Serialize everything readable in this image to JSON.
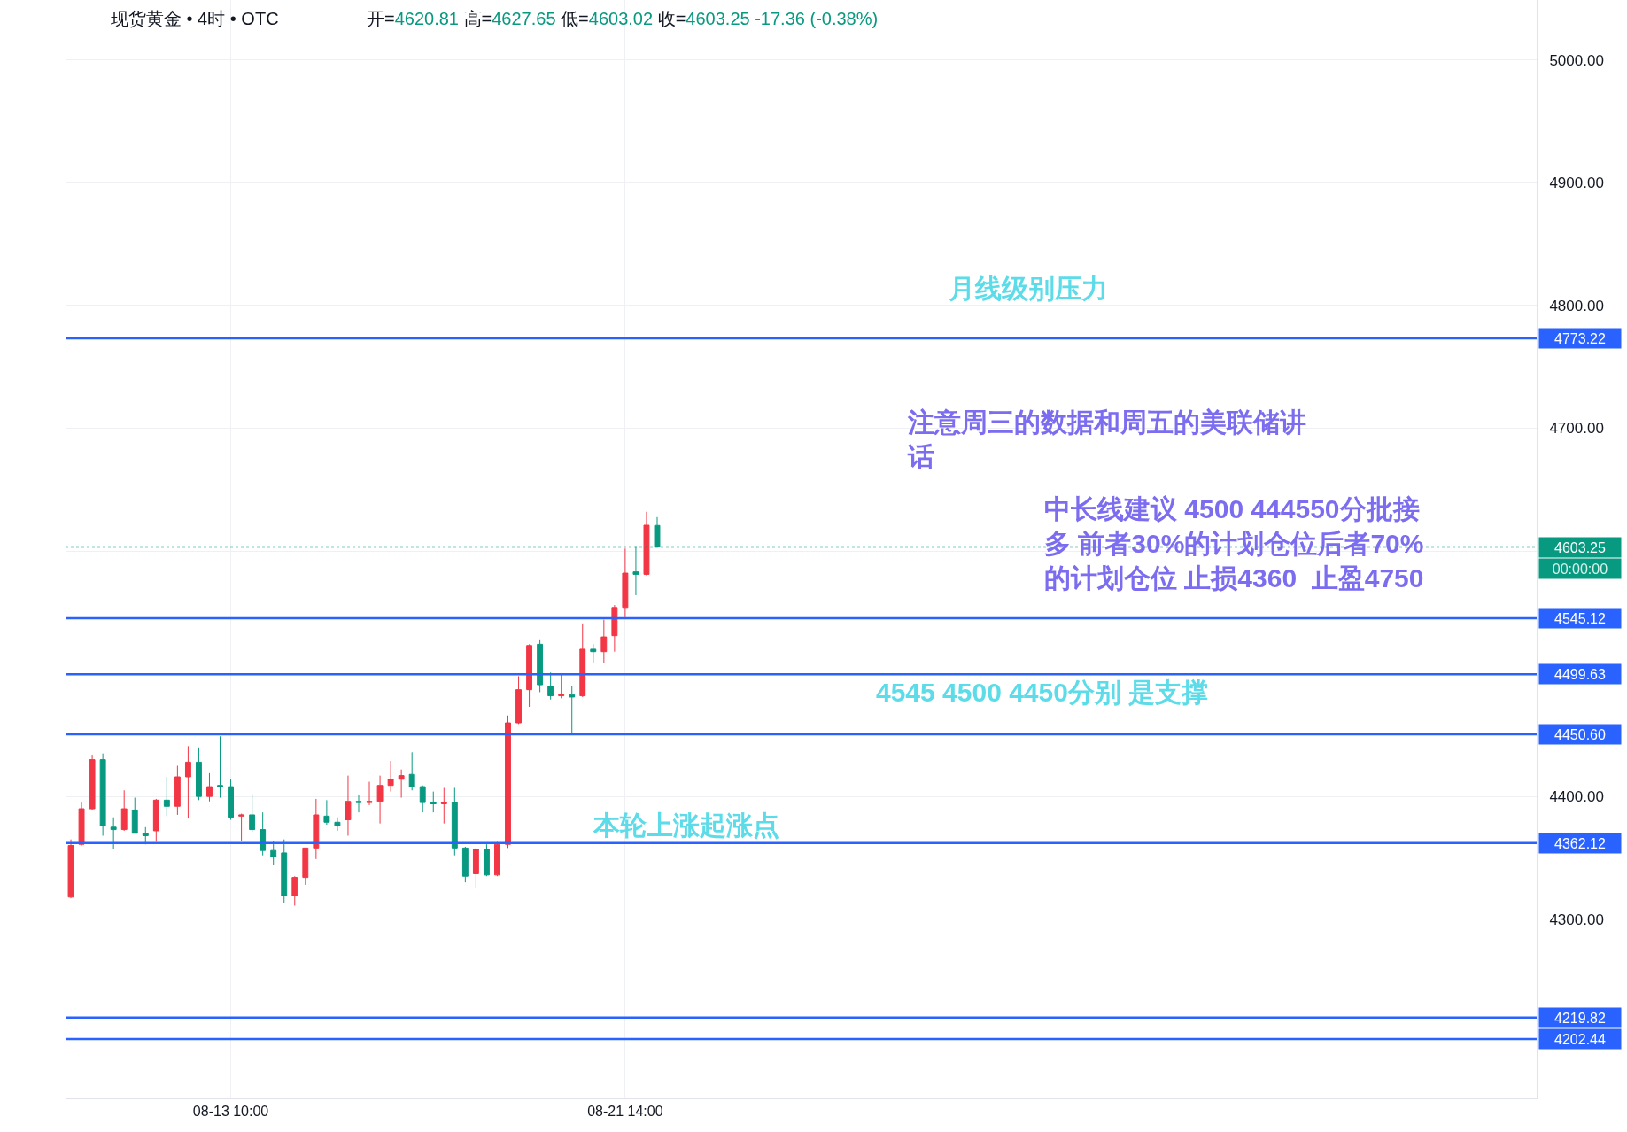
{
  "chart_data": {
    "type": "candlestick",
    "title": "现货黄金 • 4时 • OTC",
    "subtitle": "开=4620.81 高=4627.65 低=4603.02 收=4603.25 -17.36 (-0.38%)",
    "categories": [
      null,
      null,
      null,
      null,
      null,
      null,
      null,
      null,
      null,
      null,
      null,
      null,
      null,
      null,
      null,
      "08-13 10:00",
      null,
      null,
      null,
      null,
      null,
      null,
      null,
      null,
      null,
      null,
      null,
      null,
      null,
      null,
      null,
      null,
      null,
      null,
      null,
      null,
      null,
      null,
      null,
      null,
      null,
      null,
      null,
      null,
      null,
      null,
      null,
      null,
      null,
      null,
      null,
      null,
      "08-21 14:00",
      null,
      null,
      null,
      null,
      null,
      null,
      null,
      null,
      null,
      null,
      null,
      null,
      null,
      null,
      null,
      null,
      null,
      null,
      null,
      null,
      null,
      null,
      null,
      null,
      null,
      null,
      null,
      null,
      null,
      null,
      null,
      null,
      null,
      null,
      null,
      null,
      null,
      null,
      null,
      null,
      null,
      null,
      null,
      null,
      null,
      null,
      null,
      null,
      null,
      null,
      null,
      null,
      null,
      null,
      null,
      null,
      null,
      null,
      null,
      null,
      null,
      null,
      null,
      null,
      null,
      null,
      null,
      null,
      null,
      null,
      null,
      null,
      null,
      null,
      null,
      null,
      null,
      null,
      null,
      null,
      null,
      null,
      null,
      null,
      null
    ],
    "ohlc": [
      [
        4318,
        4365,
        4317,
        4360
      ],
      [
        4361,
        4395,
        4360,
        4390
      ],
      [
        4390,
        4434,
        4389,
        4430
      ],
      [
        4430,
        4435,
        4368,
        4376
      ],
      [
        4375,
        4383,
        4357,
        4373
      ],
      [
        4373,
        4405,
        4372,
        4390
      ],
      [
        4389,
        4399,
        4370,
        4370
      ],
      [
        4370,
        4375,
        4361,
        4368
      ],
      [
        4372,
        4398,
        4363,
        4397
      ],
      [
        4397,
        4416,
        4384,
        4392
      ],
      [
        4392,
        4425,
        4385,
        4416
      ],
      [
        4416,
        4441,
        4382,
        4428
      ],
      [
        4428,
        4440,
        4397,
        4400
      ],
      [
        4400,
        4419,
        4396,
        4408
      ],
      [
        4409,
        4449,
        4399,
        4408
      ],
      [
        4408,
        4414,
        4381,
        4383
      ],
      [
        4384,
        4386,
        4364,
        4385
      ],
      [
        4385,
        4402,
        4371,
        4373
      ],
      [
        4373,
        4387,
        4352,
        4356
      ],
      [
        4356,
        4364,
        4344,
        4351
      ],
      [
        4354,
        4365,
        4313,
        4319
      ],
      [
        4319,
        4335,
        4311,
        4334
      ],
      [
        4334,
        4358,
        4328,
        4358
      ],
      [
        4358,
        4398,
        4349,
        4385
      ],
      [
        4384,
        4397,
        4377,
        4379
      ],
      [
        4379,
        4383,
        4372,
        4376
      ],
      [
        4381,
        4417,
        4368,
        4396
      ],
      [
        4396,
        4401,
        4387,
        4395
      ],
      [
        4395,
        4412,
        4393,
        4396
      ],
      [
        4396,
        4417,
        4378,
        4409
      ],
      [
        4409,
        4429,
        4404,
        4414
      ],
      [
        4414,
        4422,
        4399,
        4417
      ],
      [
        4418,
        4436,
        4405,
        4408
      ],
      [
        4408,
        4409,
        4387,
        4395
      ],
      [
        4395,
        4404,
        4387,
        4394
      ],
      [
        4394,
        4407,
        4378,
        4395
      ],
      [
        4395,
        4407,
        4352,
        4358
      ],
      [
        4358,
        4359,
        4330,
        4335
      ],
      [
        4337,
        4358,
        4325,
        4357
      ],
      [
        4357,
        4361,
        4335,
        4336
      ],
      [
        4336,
        4363,
        4335,
        4361
      ],
      [
        4361,
        4466,
        4358,
        4460
      ],
      [
        4460,
        4498,
        4459,
        4487
      ],
      [
        4487,
        4524,
        4473,
        4523
      ],
      [
        4524,
        4528,
        4485,
        4491
      ],
      [
        4490,
        4501,
        4479,
        4482
      ],
      [
        4482,
        4499,
        4480,
        4483
      ],
      [
        4483,
        4490,
        4452,
        4481
      ],
      [
        4482,
        4541,
        4481,
        4520
      ],
      [
        4520,
        4524,
        4509,
        4518
      ],
      [
        4518,
        4544,
        4509,
        4530
      ],
      [
        4531,
        4556,
        4518,
        4554
      ],
      [
        4554,
        4602,
        4546,
        4582
      ],
      [
        4583,
        4604,
        4564,
        4581
      ],
      [
        4581,
        4632,
        4580,
        4621
      ],
      [
        4620.81,
        4627.65,
        4603.02,
        4603.25
      ],
      null,
      null,
      null,
      null,
      null,
      null,
      null,
      null,
      null,
      null,
      null,
      null,
      null,
      null,
      null,
      null,
      null,
      null,
      null,
      null,
      null,
      null,
      null,
      null,
      null,
      null,
      null,
      null,
      null,
      null,
      null,
      null,
      null,
      null,
      null,
      null,
      null,
      null,
      null,
      null,
      null,
      null,
      null,
      null,
      null,
      null,
      null,
      null,
      null,
      null,
      null,
      null,
      null,
      null,
      null,
      null,
      null,
      null,
      null,
      null,
      null,
      null,
      null,
      null,
      null,
      null,
      null,
      null,
      null,
      null,
      null,
      null,
      null,
      null,
      null,
      null,
      null,
      null,
      null,
      null,
      null,
      null
    ],
    "colors": [
      "#f23645",
      "#f23645",
      "#f23645",
      "#089981",
      "#089981",
      "#f23645",
      "#089981",
      "#089981",
      "#f23645",
      "#089981",
      "#f23645",
      "#f23645",
      "#089981",
      "#f23645",
      "#089981",
      "#089981",
      "#f23645",
      "#089981",
      "#089981",
      "#089981",
      "#089981",
      "#f23645",
      "#f23645",
      "#f23645",
      "#089981",
      "#089981",
      "#f23645",
      "#089981",
      "#f23645",
      "#f23645",
      "#f23645",
      "#f23645",
      "#089981",
      "#089981",
      "#089981",
      "#f23645",
      "#089981",
      "#089981",
      "#f23645",
      "#089981",
      "#f23645",
      "#f23645",
      "#f23645",
      "#f23645",
      "#089981",
      "#089981",
      "#f23645",
      "#089981",
      "#f23645",
      "#089981",
      "#f23645",
      "#f23645",
      "#f23645",
      "#089981",
      "#f23645",
      "#089981",
      null,
      null,
      null,
      null,
      null,
      null,
      null,
      null,
      null,
      null,
      null,
      null,
      null,
      null,
      null,
      null,
      null,
      null,
      null,
      null,
      null,
      null,
      null,
      null,
      null,
      null,
      null,
      null,
      null,
      null,
      null,
      null,
      null,
      null,
      null,
      null,
      null,
      null,
      null,
      null,
      null,
      null,
      null,
      null,
      null,
      null,
      null,
      null,
      null,
      null,
      null,
      null,
      null,
      null,
      null,
      null,
      null,
      null,
      null,
      null,
      null,
      null,
      null,
      null,
      null,
      null,
      null,
      null,
      null,
      null,
      null,
      null,
      null,
      null,
      null,
      null,
      null,
      null,
      null,
      null,
      null,
      null
    ],
    "ylim": [
      4154,
      5049
    ],
    "yticks": [
      {
        "value": 4300,
        "label": "4300.00"
      },
      {
        "value": 4400,
        "label": "4400.00"
      },
      {
        "value": 4600,
        "label": null
      },
      {
        "value": 4700,
        "label": "4700.00"
      },
      {
        "value": 4800,
        "label": "4800.00"
      },
      {
        "value": 4900,
        "label": "4900.00"
      },
      {
        "value": 5000,
        "label": "5000.00"
      }
    ],
    "grid": true,
    "ref_lines": [
      {
        "axis": "y",
        "value": 4773.22,
        "label": "4773.22",
        "color": "#2962ff"
      },
      {
        "axis": "y",
        "value": 4603.25,
        "label": "4603.25",
        "color": "#089981",
        "line_style": "dotted"
      },
      {
        "axis": "y",
        "value": 4545.12,
        "label": "4545.12",
        "color": "#2962ff"
      },
      {
        "axis": "y",
        "value": 4499.63,
        "label": "4499.63",
        "color": "#2962ff"
      },
      {
        "axis": "y",
        "value": 4450.6,
        "label": "4450.60",
        "color": "#2962ff"
      },
      {
        "axis": "y",
        "value": 4362.12,
        "label": "4362.12",
        "color": "#2962ff"
      },
      {
        "axis": "y",
        "value": 4219.82,
        "label": "4219.82",
        "color": "#2962ff"
      },
      {
        "axis": "y",
        "value": 4202.44,
        "label": "4202.44",
        "color": "#2962ff"
      }
    ],
    "annotations": [
      "月线级别压力",
      "注意周三的数据和周五的美联储讲话",
      "中长线建议 4500 444550分批接多 前者30%的计划仓位后者70%的计划仓位 止损4360  止盈4750",
      "00:00:00",
      "4545 4500 4450分别 是支撑",
      "本轮上涨起涨点"
    ]
  }
}
